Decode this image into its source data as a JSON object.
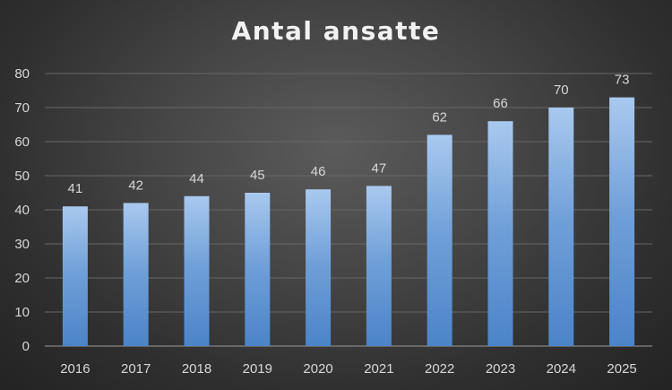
{
  "chart_data": {
    "type": "bar",
    "title": "Antal ansatte",
    "xlabel": "",
    "ylabel": "",
    "categories": [
      "2016",
      "2017",
      "2018",
      "2019",
      "2020",
      "2021",
      "2022",
      "2023",
      "2024",
      "2025"
    ],
    "values": [
      41,
      42,
      44,
      45,
      46,
      47,
      62,
      66,
      70,
      73
    ],
    "ylim": [
      0,
      80
    ],
    "yticks": [
      0,
      10,
      20,
      30,
      40,
      50,
      60,
      70,
      80
    ],
    "grid": true,
    "legend": "none",
    "data_labels": true,
    "colors": {
      "bar_light": "#a9c9ee",
      "bar_mid": "#6f9fd8",
      "bar_dark": "#4b84c8",
      "background": "#2f2f2f",
      "text": "#d7d7d7"
    }
  }
}
